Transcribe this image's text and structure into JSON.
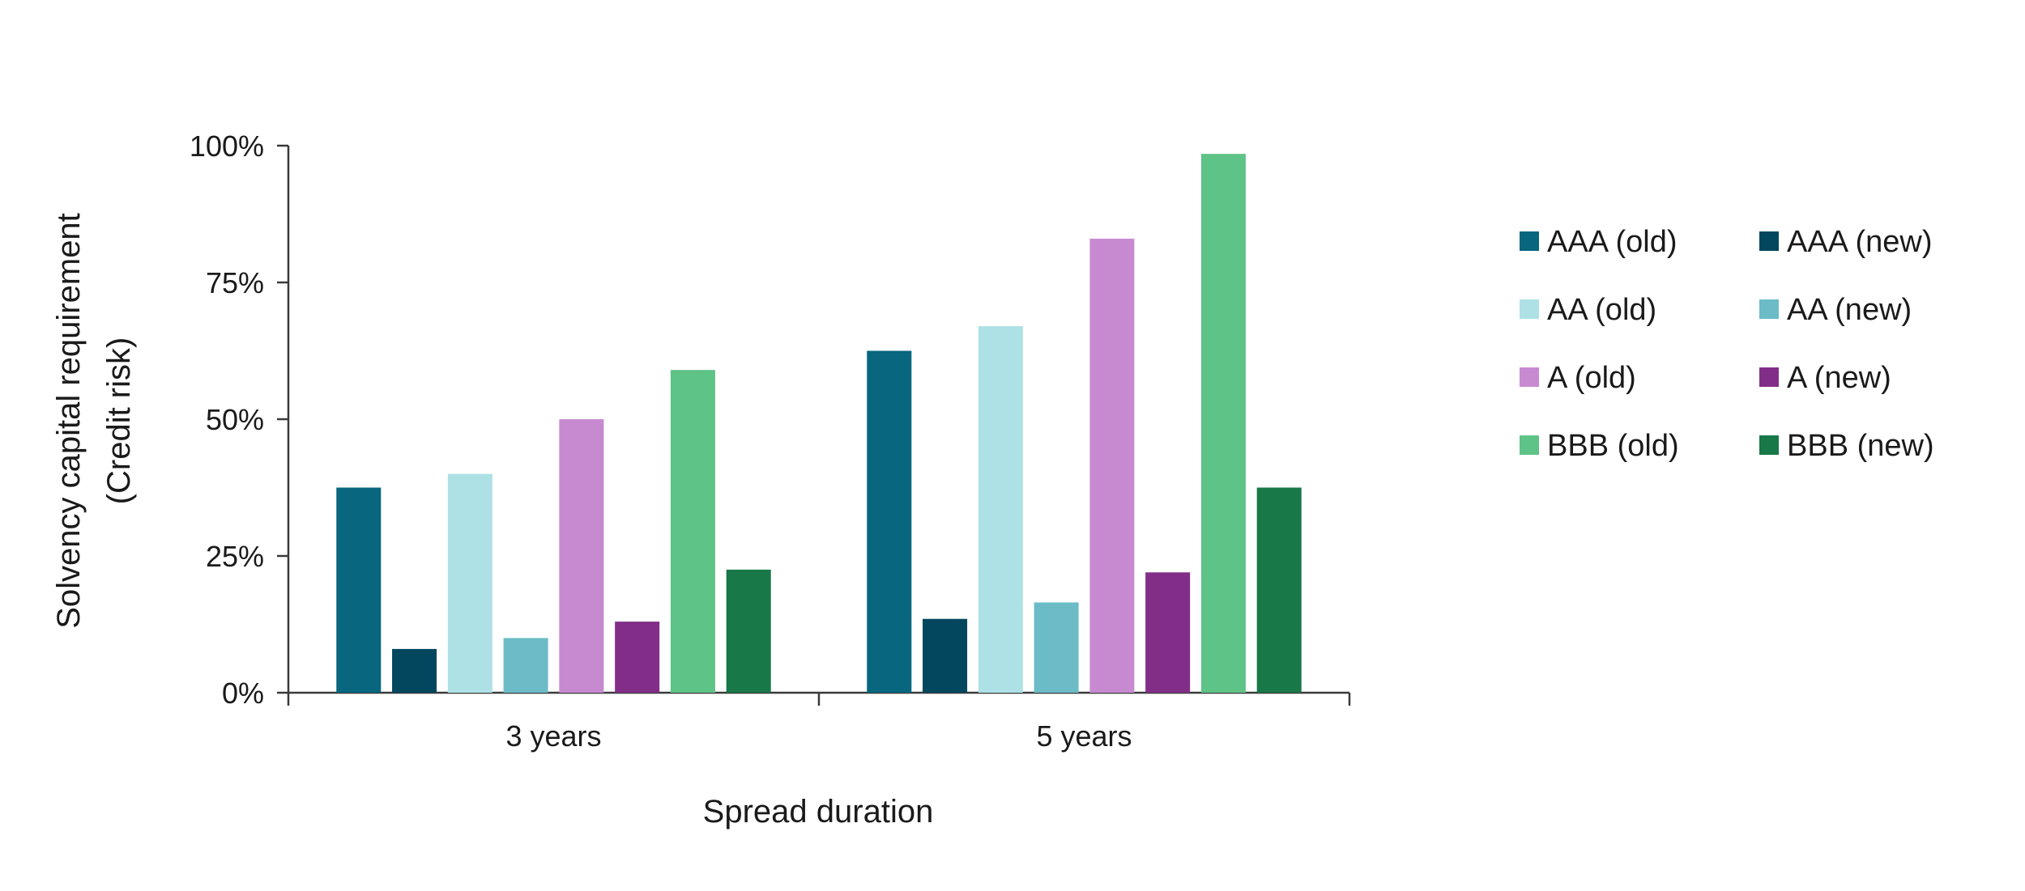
{
  "chart_data": {
    "type": "bar",
    "categories": [
      "3 years",
      "5 years"
    ],
    "xlabel": "Spread duration",
    "ylabel": [
      "Solvency capital requirement",
      "(Credit risk)"
    ],
    "ylim": [
      0,
      100
    ],
    "yticks": [
      "0%",
      "25%",
      "50%",
      "75%",
      "100%"
    ],
    "grid": false,
    "legend_position": "right",
    "series": [
      {
        "name": "AAA (old)",
        "color": "#08667E",
        "values": [
          37.5,
          62.5
        ]
      },
      {
        "name": "AAA (new)",
        "color": "#02475E",
        "values": [
          8,
          13.5
        ]
      },
      {
        "name": "AA (old)",
        "color": "#ADE1E5",
        "values": [
          40,
          67
        ]
      },
      {
        "name": "AA (new)",
        "color": "#6BBCC6",
        "values": [
          10,
          16.5
        ]
      },
      {
        "name": "A (old)",
        "color": "#C78AD1",
        "values": [
          50,
          83
        ]
      },
      {
        "name": "A (new)",
        "color": "#822E89",
        "values": [
          13,
          22
        ]
      },
      {
        "name": "BBB (old)",
        "color": "#5EC387",
        "values": [
          59,
          98.5
        ]
      },
      {
        "name": "BBB (new)",
        "color": "#187848",
        "values": [
          22.5,
          37.5
        ]
      }
    ]
  }
}
